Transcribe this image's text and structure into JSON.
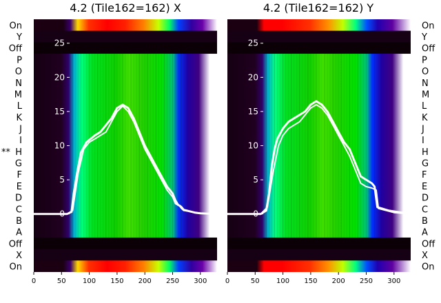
{
  "chart_data": [
    {
      "type": "heatmap",
      "title": "4.2 (Tile162=162) X",
      "x_ticks": [
        0,
        50,
        100,
        150,
        200,
        250,
        300
      ],
      "xlim": [
        0,
        330
      ],
      "overlay_ylim": [
        -8.5,
        28.5
      ],
      "overlay_y_ticks": [
        0,
        5,
        10,
        15,
        20,
        25
      ],
      "overlay_series": [
        {
          "x": [
            0,
            20,
            40,
            60,
            68,
            72,
            78,
            85,
            95,
            110,
            120,
            125,
            130,
            140,
            150,
            160,
            170,
            180,
            190,
            200,
            210,
            220,
            230,
            240,
            250,
            255,
            260,
            263,
            266,
            270,
            280,
            290,
            300,
            330
          ],
          "y": [
            0,
            0,
            0,
            0,
            0.3,
            3,
            6,
            9,
            10.5,
            11.5,
            12,
            12.5,
            13,
            14,
            15.5,
            16,
            15.5,
            14,
            12,
            10,
            8.5,
            7,
            5.5,
            4,
            3,
            2,
            1.3,
            1.2,
            1,
            0.6,
            0.4,
            0.2,
            0.1,
            0
          ]
        },
        {
          "x": [
            0,
            60,
            70,
            80,
            90,
            100,
            110,
            120,
            130,
            140,
            150,
            160,
            170,
            180,
            190,
            200,
            210,
            220,
            230,
            240,
            250,
            255,
            262,
            266,
            270,
            300,
            330
          ],
          "y": [
            0,
            0,
            0.5,
            6,
            9.5,
            10.5,
            11,
            11.5,
            12,
            13.5,
            15,
            15.8,
            15,
            13.5,
            11.5,
            9.5,
            8,
            6.5,
            5,
            3.5,
            2.5,
            1.5,
            1.2,
            0.8,
            0.5,
            0.1,
            0
          ]
        }
      ]
    },
    {
      "type": "heatmap",
      "title": "4.2 (Tile162=162) Y",
      "x_ticks": [
        0,
        50,
        100,
        150,
        200,
        250,
        300
      ],
      "xlim": [
        0,
        330
      ],
      "overlay_ylim": [
        -8.5,
        28.5
      ],
      "overlay_y_ticks": [
        0,
        5,
        10,
        15,
        20,
        25
      ],
      "overlay_series": [
        {
          "x": [
            0,
            20,
            40,
            60,
            70,
            75,
            80,
            85,
            90,
            100,
            110,
            120,
            130,
            140,
            150,
            160,
            170,
            180,
            190,
            200,
            210,
            220,
            230,
            240,
            250,
            260,
            265,
            270,
            290,
            330
          ],
          "y": [
            0,
            0,
            0,
            0,
            0.5,
            3,
            7,
            9.5,
            11,
            12.5,
            13.5,
            14,
            14.5,
            15,
            16,
            16.5,
            16,
            15,
            13.5,
            12,
            10.5,
            9.5,
            7.5,
            5.5,
            5,
            4.5,
            4,
            1,
            0.5,
            0
          ]
        },
        {
          "x": [
            0,
            60,
            72,
            82,
            92,
            100,
            110,
            120,
            130,
            140,
            150,
            160,
            170,
            180,
            190,
            200,
            210,
            220,
            230,
            240,
            250,
            260,
            268,
            272,
            300,
            330
          ],
          "y": [
            0,
            0,
            1,
            6,
            10,
            11.5,
            12.5,
            13,
            13.5,
            14.5,
            15.5,
            16,
            15.5,
            14.5,
            13,
            11.5,
            10,
            8.5,
            6.5,
            4.5,
            4,
            3.8,
            3.5,
            0.8,
            0.2,
            0
          ]
        }
      ]
    }
  ],
  "row_labels": [
    "On",
    "Y",
    "Off",
    "P",
    "O",
    "N",
    "M",
    "L",
    "K",
    "J",
    "I",
    "H",
    "G",
    "F",
    "E",
    "D",
    "C",
    "B",
    "A",
    "Off",
    "X",
    "On"
  ],
  "marker_label": "**",
  "marker_row": "H"
}
